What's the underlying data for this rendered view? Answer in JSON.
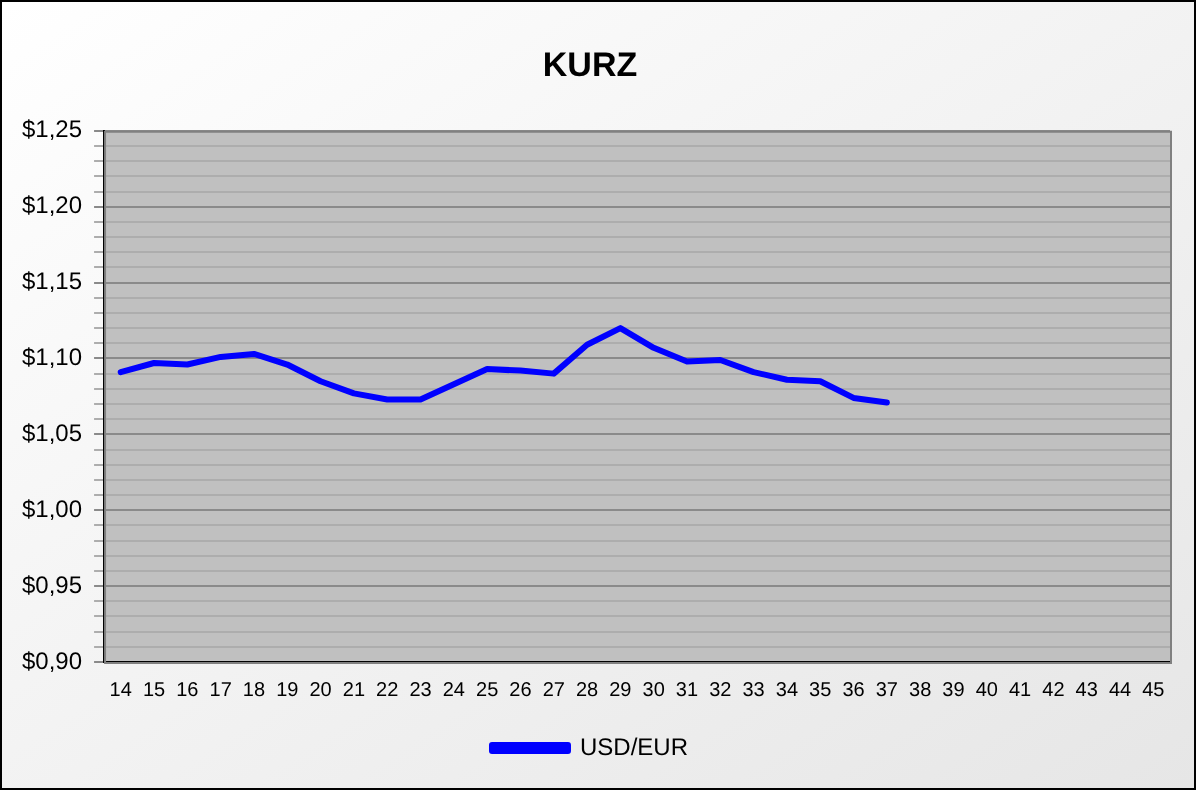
{
  "chart_data": {
    "type": "line",
    "title": "KURZ",
    "categories": [
      "14",
      "15",
      "16",
      "17",
      "18",
      "19",
      "20",
      "21",
      "22",
      "23",
      "24",
      "25",
      "26",
      "27",
      "28",
      "29",
      "30",
      "31",
      "32",
      "33",
      "34",
      "35",
      "36",
      "37",
      "38",
      "39",
      "40",
      "41",
      "42",
      "43",
      "44",
      "45"
    ],
    "series": [
      {
        "name": "USD/EUR",
        "color": "#0000ff",
        "values": [
          1.091,
          1.097,
          1.096,
          1.101,
          1.103,
          1.096,
          1.085,
          1.077,
          1.073,
          1.073,
          1.083,
          1.093,
          1.092,
          1.09,
          1.109,
          1.12,
          1.107,
          1.098,
          1.099,
          1.091,
          1.086,
          1.085,
          1.074,
          1.071,
          null,
          null,
          null,
          null,
          null,
          null,
          null,
          null
        ]
      }
    ],
    "ylim": [
      0.9,
      1.25
    ],
    "yticks": [
      {
        "value": 0.9,
        "label": "$0,90"
      },
      {
        "value": 0.91,
        "label": null
      },
      {
        "value": 0.92,
        "label": null
      },
      {
        "value": 0.93,
        "label": null
      },
      {
        "value": 0.94,
        "label": null
      },
      {
        "value": 0.95,
        "label": "$0,95"
      },
      {
        "value": 0.96,
        "label": null
      },
      {
        "value": 0.97,
        "label": null
      },
      {
        "value": 0.98,
        "label": null
      },
      {
        "value": 0.99,
        "label": null
      },
      {
        "value": 1.0,
        "label": "$1,00"
      },
      {
        "value": 1.01,
        "label": null
      },
      {
        "value": 1.02,
        "label": null
      },
      {
        "value": 1.03,
        "label": null
      },
      {
        "value": 1.04,
        "label": null
      },
      {
        "value": 1.05,
        "label": "$1,05"
      },
      {
        "value": 1.06,
        "label": null
      },
      {
        "value": 1.07,
        "label": null
      },
      {
        "value": 1.08,
        "label": null
      },
      {
        "value": 1.09,
        "label": null
      },
      {
        "value": 1.1,
        "label": "$1,10"
      },
      {
        "value": 1.11,
        "label": null
      },
      {
        "value": 1.12,
        "label": null
      },
      {
        "value": 1.13,
        "label": null
      },
      {
        "value": 1.14,
        "label": null
      },
      {
        "value": 1.15,
        "label": "$1,15"
      },
      {
        "value": 1.16,
        "label": null
      },
      {
        "value": 1.17,
        "label": null
      },
      {
        "value": 1.18,
        "label": null
      },
      {
        "value": 1.19,
        "label": null
      },
      {
        "value": 1.2,
        "label": "$1,20"
      },
      {
        "value": 1.21,
        "label": null
      },
      {
        "value": 1.22,
        "label": null
      },
      {
        "value": 1.23,
        "label": null
      },
      {
        "value": 1.24,
        "label": null
      },
      {
        "value": 1.25,
        "label": "$1,25"
      }
    ],
    "grid": "y",
    "legend": "bottom",
    "marker": "none",
    "line_style": "solid"
  }
}
